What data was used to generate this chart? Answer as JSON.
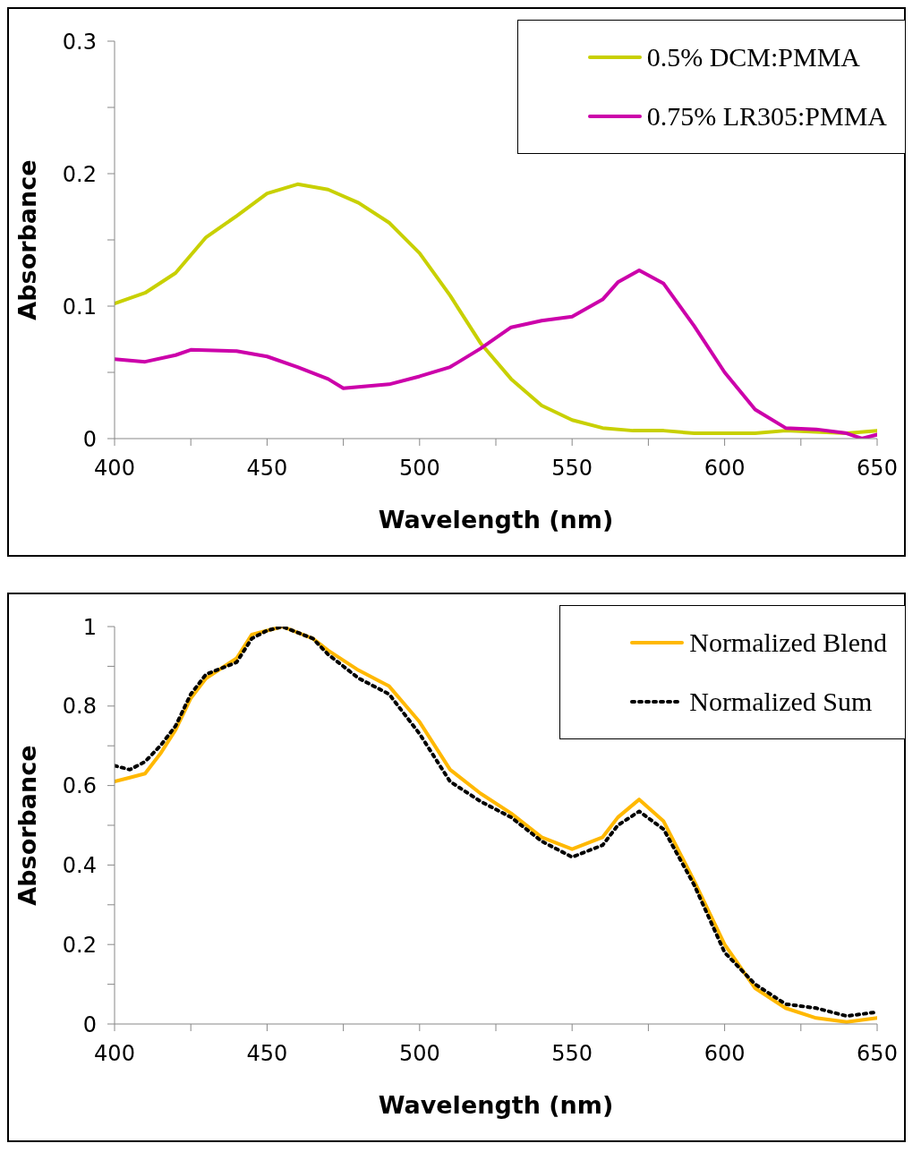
{
  "chart_data": [
    {
      "type": "line",
      "xlabel": "Wavelength (nm)",
      "ylabel": "Absorbance",
      "xlim": [
        400,
        650
      ],
      "ylim": [
        0,
        0.3
      ],
      "xticks": [
        400,
        {
          "value": 425,
          "label": null
        },
        450,
        {
          "value": 475,
          "label": null
        },
        500,
        {
          "value": 525,
          "label": null
        },
        550,
        {
          "value": 575,
          "label": null
        },
        600,
        {
          "value": 625,
          "label": null
        },
        650
      ],
      "yticks": [
        0,
        {
          "value": 0.05,
          "label": null
        },
        0.1,
        {
          "value": 0.15,
          "label": null
        },
        0.2,
        {
          "value": 0.25,
          "label": null
        },
        0.3
      ],
      "legend": "top right",
      "series": [
        {
          "name": "0.5% DCM:PMMA",
          "color": "#c8d000",
          "line_style": "solid",
          "x": [
            400,
            410,
            420,
            430,
            440,
            450,
            460,
            470,
            480,
            490,
            500,
            510,
            520,
            530,
            540,
            550,
            560,
            570,
            580,
            590,
            600,
            610,
            620,
            630,
            640,
            650
          ],
          "values": [
            0.102,
            0.11,
            0.125,
            0.152,
            0.168,
            0.185,
            0.192,
            0.188,
            0.178,
            0.163,
            0.14,
            0.108,
            0.072,
            0.045,
            0.025,
            0.014,
            0.008,
            0.006,
            0.006,
            0.004,
            0.004,
            0.004,
            0.006,
            0.005,
            0.004,
            0.006
          ]
        },
        {
          "name": "0.75% LR305:PMMA",
          "color": "#cc00aa",
          "line_style": "solid",
          "x": [
            400,
            410,
            420,
            425,
            440,
            450,
            460,
            470,
            475,
            490,
            500,
            510,
            520,
            530,
            540,
            550,
            560,
            565,
            572,
            580,
            590,
            600,
            610,
            620,
            630,
            640,
            645,
            650
          ],
          "values": [
            0.06,
            0.058,
            0.063,
            0.067,
            0.066,
            0.062,
            0.054,
            0.045,
            0.038,
            0.041,
            0.047,
            0.054,
            0.068,
            0.084,
            0.089,
            0.092,
            0.105,
            0.118,
            0.127,
            0.117,
            0.085,
            0.05,
            0.022,
            0.008,
            0.007,
            0.004,
            0.0,
            0.003
          ]
        }
      ]
    },
    {
      "type": "line",
      "xlabel": "Wavelength (nm)",
      "ylabel": "Absorbance",
      "xlim": [
        400,
        650
      ],
      "ylim": [
        0,
        1
      ],
      "xticks": [
        400,
        {
          "value": 425,
          "label": null
        },
        450,
        {
          "value": 475,
          "label": null
        },
        500,
        {
          "value": 525,
          "label": null
        },
        550,
        {
          "value": 575,
          "label": null
        },
        600,
        {
          "value": 625,
          "label": null
        },
        650
      ],
      "yticks": [
        0,
        {
          "value": 0.1,
          "label": null
        },
        0.2,
        {
          "value": 0.3,
          "label": null
        },
        0.4,
        {
          "value": 0.5,
          "label": null
        },
        0.6,
        {
          "value": 0.7,
          "label": null
        },
        0.8,
        {
          "value": 0.9,
          "label": null
        },
        1
      ],
      "legend": "top right",
      "series": [
        {
          "name": "Normalized Blend",
          "color": "#ffb800",
          "line_style": "solid",
          "x": [
            400,
            405,
            410,
            415,
            420,
            425,
            430,
            440,
            445,
            450,
            455,
            465,
            470,
            480,
            490,
            500,
            510,
            520,
            530,
            540,
            550,
            560,
            565,
            572,
            580,
            590,
            600,
            610,
            620,
            630,
            640,
            650
          ],
          "values": [
            0.61,
            0.62,
            0.63,
            0.68,
            0.74,
            0.82,
            0.87,
            0.92,
            0.98,
            0.99,
            1.0,
            0.97,
            0.94,
            0.89,
            0.85,
            0.76,
            0.64,
            0.58,
            0.53,
            0.47,
            0.44,
            0.47,
            0.52,
            0.565,
            0.51,
            0.36,
            0.2,
            0.09,
            0.04,
            0.015,
            0.005,
            0.015
          ]
        },
        {
          "name": "Normalized Sum",
          "color": "#000000",
          "line_style": "dotted",
          "x": [
            400,
            405,
            410,
            415,
            420,
            425,
            430,
            440,
            445,
            450,
            455,
            465,
            470,
            480,
            490,
            500,
            510,
            520,
            530,
            540,
            550,
            560,
            565,
            572,
            580,
            590,
            600,
            610,
            620,
            630,
            640,
            650
          ],
          "values": [
            0.65,
            0.64,
            0.66,
            0.7,
            0.75,
            0.83,
            0.88,
            0.91,
            0.97,
            0.99,
            1.0,
            0.97,
            0.93,
            0.87,
            0.83,
            0.73,
            0.61,
            0.56,
            0.52,
            0.46,
            0.42,
            0.45,
            0.5,
            0.535,
            0.49,
            0.35,
            0.18,
            0.1,
            0.05,
            0.04,
            0.02,
            0.03
          ]
        }
      ]
    }
  ]
}
